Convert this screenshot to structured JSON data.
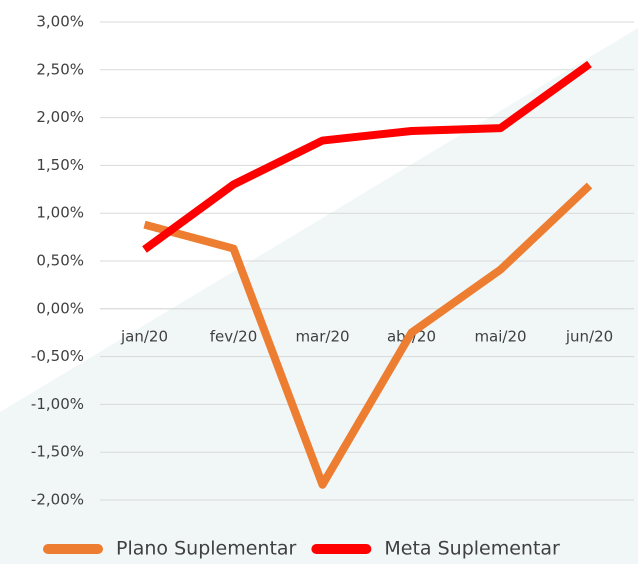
{
  "chart_data": {
    "type": "line",
    "categories": [
      "jan/20",
      "fev/20",
      "mar/20",
      "abr/20",
      "mai/20",
      "jun/20"
    ],
    "series": [
      {
        "name": "Plano Suplementar",
        "color": "#ed7d31",
        "values": [
          0.88,
          0.63,
          -1.84,
          -0.25,
          0.41,
          1.29
        ]
      },
      {
        "name": "Meta Suplementar",
        "color": "#ff0000",
        "values": [
          0.62,
          1.3,
          1.76,
          1.86,
          1.89,
          2.56
        ]
      }
    ],
    "ylim": [
      -2,
      3
    ],
    "yticks": [
      {
        "value": -2,
        "label": "-2,00%"
      },
      {
        "value": -1.5,
        "label": "-1,50%"
      },
      {
        "value": -1,
        "label": "-1,00%"
      },
      {
        "value": -0.5,
        "label": "-0,50%"
      },
      {
        "value": 0,
        "label": "0,00%"
      },
      {
        "value": 0.5,
        "label": "0,50%"
      },
      {
        "value": 1,
        "label": "1,00%"
      },
      {
        "value": 1.5,
        "label": "1,50%"
      },
      {
        "value": 2,
        "label": "2,00%"
      },
      {
        "value": 2.5,
        "label": "2,50%"
      },
      {
        "value": 3,
        "label": "3,00%"
      }
    ],
    "grid": true,
    "legend": "bottom"
  }
}
